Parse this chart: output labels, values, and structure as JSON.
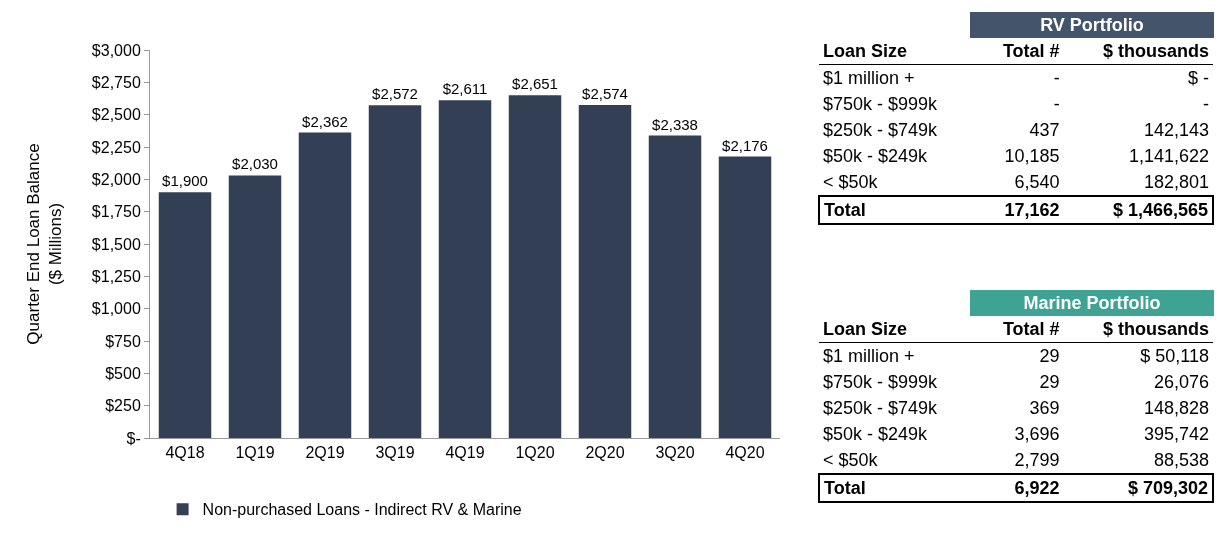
{
  "chart_data": [
    {
      "type": "bar",
      "ylabel": "Quarter End Loan Balance\n($ Millions)",
      "categories": [
        "4Q18",
        "1Q19",
        "2Q19",
        "3Q19",
        "4Q19",
        "1Q20",
        "2Q20",
        "3Q20",
        "4Q20"
      ],
      "series": [
        {
          "name": "Non-purchased Loans - Indirect RV & Marine",
          "color": "#333f55",
          "values": [
            1900,
            2030,
            2362,
            2572,
            2611,
            2651,
            2574,
            2338,
            2176
          ],
          "value_labels": [
            "$1,900",
            "$2,030",
            "$2,362",
            "$2,572",
            "$2,611",
            "$2,651",
            "$2,574",
            "$2,338",
            "$2,176"
          ]
        }
      ],
      "ylim": [
        0,
        3000
      ],
      "yticks": [
        {
          "value": 0,
          "label": "$-"
        },
        {
          "value": 250,
          "label": "$250"
        },
        {
          "value": 500,
          "label": "$500"
        },
        {
          "value": 750,
          "label": "$750"
        },
        {
          "value": 1000,
          "label": "$1,000"
        },
        {
          "value": 1250,
          "label": "$1,250"
        },
        {
          "value": 1500,
          "label": "$1,500"
        },
        {
          "value": 1750,
          "label": "$1,750"
        },
        {
          "value": 2000,
          "label": "$2,000"
        },
        {
          "value": 2250,
          "label": "$2,250"
        },
        {
          "value": 2500,
          "label": "$2,500"
        },
        {
          "value": 2750,
          "label": "$2,750"
        },
        {
          "value": 3000,
          "label": "$3,000"
        }
      ],
      "grid": false,
      "legend": "bottom"
    },
    {
      "type": "other",
      "title": "RV Portfolio",
      "color": "#44546a",
      "categories": [
        "Loan Size",
        "Total #",
        "$ thousands"
      ],
      "cell_labels": [
        [
          "$1 million +",
          "-",
          "$ -"
        ],
        [
          "$750k - $999k",
          "-",
          "-"
        ],
        [
          "$250k - $749k",
          "437",
          "142,143"
        ],
        [
          "$50k - $249k",
          "10,185",
          "1,141,622"
        ],
        [
          "< $50k",
          "6,540",
          "182,801"
        ],
        [
          "Total",
          "17,162",
          "$ 1,466,565"
        ]
      ]
    },
    {
      "type": "other",
      "title": "Marine Portfolio",
      "color": "#3fa394",
      "categories": [
        "Loan Size",
        "Total #",
        "$ thousands"
      ],
      "cell_labels": [
        [
          "$1 million +",
          "29",
          "$ 50,118"
        ],
        [
          "$750k - $999k",
          "29",
          "26,076"
        ],
        [
          "$250k - $749k",
          "369",
          "148,828"
        ],
        [
          "$50k - $249k",
          "3,696",
          "395,742"
        ],
        [
          "< $50k",
          "2,799",
          "88,538"
        ],
        [
          "Total",
          "6,922",
          "$ 709,302"
        ]
      ]
    }
  ]
}
